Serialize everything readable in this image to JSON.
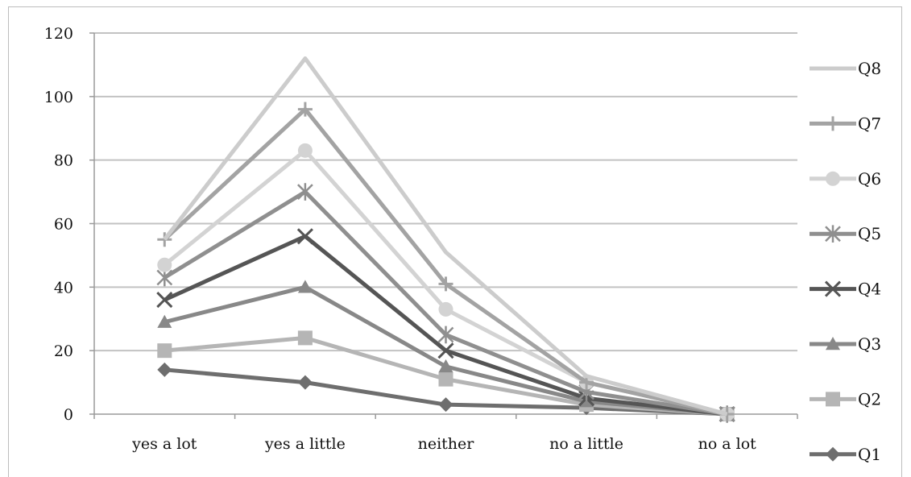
{
  "chart_data": {
    "type": "line",
    "title": "",
    "xlabel": "",
    "ylabel": "",
    "categories": [
      "yes a lot",
      "yes a little",
      "neither",
      "no a little",
      "no a lot"
    ],
    "ylim": [
      0,
      120
    ],
    "yticks": [
      "0",
      "20",
      "40",
      "60",
      "80",
      "100",
      "120"
    ],
    "grid": true,
    "legend_position": "right",
    "series": [
      {
        "name": "Q8",
        "values": [
          55,
          112,
          51,
          12,
          0
        ],
        "color": "#cccccc",
        "marker": "none"
      },
      {
        "name": "Q7",
        "values": [
          55,
          96,
          41,
          10,
          0
        ],
        "color": "#a3a3a3",
        "marker": "plus"
      },
      {
        "name": "Q6",
        "values": [
          47,
          83,
          33,
          10,
          0
        ],
        "color": "#d3d3d3",
        "marker": "circle"
      },
      {
        "name": "Q5",
        "values": [
          43,
          70,
          25,
          7,
          0
        ],
        "color": "#8f8f8f",
        "marker": "asterisk"
      },
      {
        "name": "Q4",
        "values": [
          36,
          56,
          20,
          5,
          0
        ],
        "color": "#555555",
        "marker": "x"
      },
      {
        "name": "Q3",
        "values": [
          29,
          40,
          15,
          4,
          0
        ],
        "color": "#888888",
        "marker": "triangle"
      },
      {
        "name": "Q2",
        "values": [
          20,
          24,
          11,
          3,
          0
        ],
        "color": "#b5b5b5",
        "marker": "square"
      },
      {
        "name": "Q1",
        "values": [
          14,
          10,
          3,
          2,
          0
        ],
        "color": "#6e6e6e",
        "marker": "diamond"
      }
    ]
  }
}
